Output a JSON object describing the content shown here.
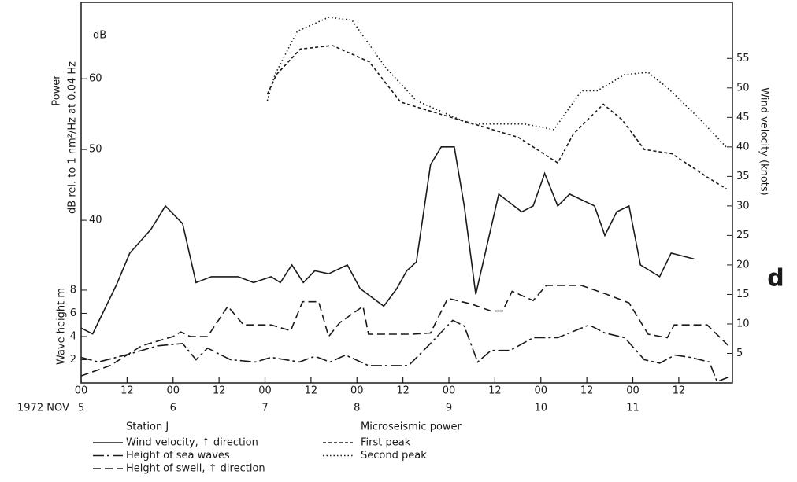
{
  "chart_data": {
    "type": "line",
    "panel_label": "d",
    "ylabel_1": "Power",
    "ylabel_2": "dB rel. to 1 nm²/Hz at 0.04 Hz",
    "yunit": "dB",
    "y3label": "Wave height m",
    "y2label": "Wind velocity (knots)",
    "year_month": "1972 NOV",
    "legend_group_1": "Station J",
    "legend_group_2": "Microseismic power",
    "xlim": [
      0,
      170
    ],
    "xticks": [
      {
        "value": 0,
        "label": "00"
      },
      {
        "value": 12,
        "label": "12"
      },
      {
        "value": 24,
        "label": "00"
      },
      {
        "value": 36,
        "label": "12"
      },
      {
        "value": 48,
        "label": "00"
      },
      {
        "value": 60,
        "label": "12"
      },
      {
        "value": 72,
        "label": "00"
      },
      {
        "value": 84,
        "label": "12"
      },
      {
        "value": 96,
        "label": "00"
      },
      {
        "value": 108,
        "label": "12"
      },
      {
        "value": 120,
        "label": "00"
      },
      {
        "value": 132,
        "label": "12"
      },
      {
        "value": 144,
        "label": "00"
      },
      {
        "value": 156,
        "label": "12"
      }
    ],
    "date_ticks": [
      {
        "value": 0,
        "label": "5"
      },
      {
        "value": 24,
        "label": "6"
      },
      {
        "value": 48,
        "label": "7"
      },
      {
        "value": 72,
        "label": "8"
      },
      {
        "value": 96,
        "label": "9"
      },
      {
        "value": 120,
        "label": "10"
      },
      {
        "value": 144,
        "label": "11"
      }
    ],
    "ylim": [
      17,
      70.8
    ],
    "yticks": [
      40,
      50,
      60
    ],
    "y2lim": [
      0,
      64.5
    ],
    "y2ticks": [
      5,
      10,
      15,
      20,
      25,
      30,
      35,
      40,
      45,
      50,
      55
    ],
    "y3lim": [
      0,
      32.8
    ],
    "y3ticks": [
      2,
      4,
      6,
      8
    ],
    "series": [
      {
        "name": "Wind velocity, ↑ direction",
        "axis": "y2",
        "color": "#1a1a1a",
        "dash": "solid",
        "legend": 1,
        "x": [
          0,
          3,
          9.2,
          12.7,
          18.2,
          22,
          26.5,
          30,
          34,
          41,
          45,
          49.6,
          52,
          55,
          58,
          61,
          64.6,
          69.5,
          72.8,
          79,
          82.4,
          85,
          87.5,
          91.2,
          94,
          97.4,
          100,
          103,
          109,
          115,
          118,
          121,
          124.4,
          127.5,
          134,
          136.7,
          139.8,
          143,
          146,
          151,
          154,
          160
        ],
        "values": [
          9.3,
          8.3,
          16.6,
          22,
          26,
          30,
          27,
          17,
          18,
          18,
          17,
          18,
          17,
          20,
          17,
          19,
          18.5,
          20,
          16,
          13,
          16,
          19,
          20.5,
          37,
          40,
          40,
          30,
          15,
          32,
          29,
          30,
          35.5,
          30,
          32,
          30,
          25,
          29,
          30,
          20,
          18,
          22,
          21
        ]
      },
      {
        "name": "Height of sea waves",
        "axis": "y3",
        "color": "#1a1a1a",
        "dash": "dash-dot",
        "legend": 1,
        "x": [
          0,
          4.5,
          12.7,
          20,
          26.5,
          30,
          33,
          39,
          45.5,
          49.6,
          57,
          61,
          65,
          69,
          75,
          85.5,
          90.6,
          97,
          100,
          103.5,
          107,
          112,
          118,
          124.4,
          132.6,
          136.7,
          141.9,
          147,
          151,
          155,
          159,
          164,
          166,
          169
        ],
        "values": [
          2.2,
          1.8,
          2.5,
          3.2,
          3.4,
          2,
          3,
          2,
          1.8,
          2.2,
          1.8,
          2.3,
          1.8,
          2.4,
          1.5,
          1.5,
          3.2,
          5.4,
          4.9,
          1.8,
          2.8,
          2.8,
          3.9,
          3.9,
          5,
          4.3,
          3.9,
          2,
          1.7,
          2.4,
          2.2,
          1.8,
          0.1,
          0.5
        ]
      },
      {
        "name": "Height of swell, ↑ direction",
        "axis": "y3",
        "color": "#1a1a1a",
        "dash": "dash",
        "legend": 1,
        "x": [
          0,
          7.6,
          15.8,
          24,
          26,
          28.5,
          33,
          38.3,
          42.4,
          49.6,
          54.7,
          57.8,
          62,
          64.6,
          67.5,
          73.6,
          75,
          79,
          86.5,
          91.2,
          95.7,
          101.9,
          107,
          110,
          112.5,
          118,
          121.4,
          130.6,
          136.7,
          143,
          148,
          153,
          154.8,
          163.4,
          169
        ],
        "values": [
          0.6,
          1.5,
          3.2,
          4,
          4.4,
          4,
          4,
          6.6,
          5,
          5,
          4.5,
          7,
          7,
          4,
          5.2,
          6.6,
          4.2,
          4.2,
          4.2,
          4.3,
          7.3,
          6.8,
          6.2,
          6.2,
          7.9,
          7.1,
          8.4,
          8.4,
          7.7,
          6.9,
          4.2,
          3.9,
          5,
          5,
          3.2
        ]
      },
      {
        "name": "First peak",
        "axis": "y",
        "color": "#1a1a1a",
        "dash": "fine-dash",
        "legend": 2,
        "x": [
          48.6,
          51,
          57.2,
          65.6,
          75.2,
          83.4,
          93.7,
          101.9,
          114.2,
          124.4,
          128.5,
          136.3,
          141.2,
          147,
          154.2,
          163.4,
          168.5
        ],
        "values": [
          57.8,
          60.6,
          64.2,
          64.7,
          62.4,
          56.7,
          55,
          53.7,
          51.7,
          48.1,
          52.2,
          56.4,
          54.2,
          50,
          49.4,
          46.1,
          44.4
        ]
      },
      {
        "name": "Second peak",
        "axis": "y",
        "color": "#1a1a1a",
        "dash": "dotted",
        "legend": 2,
        "x": [
          48.6,
          50.6,
          56.4,
          64.6,
          70.7,
          79.3,
          87.5,
          101.5,
          110,
          115.8,
          123.4,
          130.6,
          134.7,
          141.9,
          148,
          153.1,
          161.3,
          169
        ],
        "values": [
          56.9,
          60.6,
          66.7,
          68.7,
          68.3,
          61.7,
          56.9,
          53.6,
          53.6,
          53.6,
          52.8,
          58.3,
          58.3,
          60.6,
          60.9,
          58.7,
          54.4,
          50
        ]
      }
    ]
  }
}
